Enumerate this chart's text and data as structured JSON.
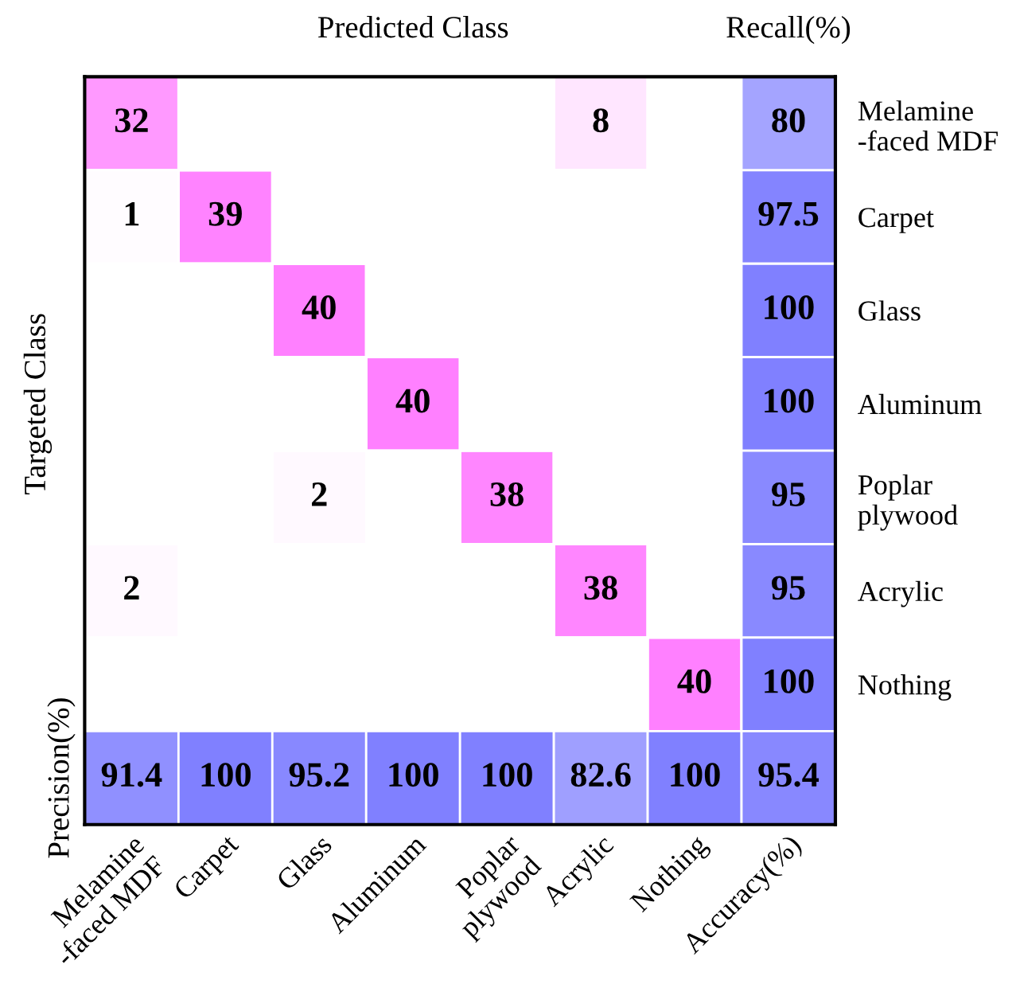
{
  "chart_data": {
    "type": "heatmap",
    "xlabel": "Predicted Class",
    "ylabel": "Targeted Class",
    "annotations": [
      "Recall(%)",
      "Precision(%)"
    ],
    "categories": [
      "Melamine\n-faced MDF",
      "Carpet",
      "Glass",
      "Aluminum",
      "Poplar\nplywood",
      "Acrylic",
      "Nothing",
      "Accuracy(%)"
    ],
    "y_categories": [
      "Melamine\n-faced MDF",
      "Carpet",
      "Glass",
      "Aluminum",
      "Poplar\nplywood",
      "Acrylic",
      "Nothing",
      null
    ],
    "cells": [
      [
        32,
        null,
        null,
        null,
        null,
        8,
        null,
        80
      ],
      [
        1,
        39,
        null,
        null,
        null,
        null,
        null,
        97.5
      ],
      [
        null,
        null,
        40,
        null,
        null,
        null,
        null,
        100
      ],
      [
        null,
        null,
        null,
        40,
        null,
        null,
        null,
        100
      ],
      [
        null,
        null,
        2,
        null,
        38,
        null,
        null,
        95
      ],
      [
        2,
        null,
        null,
        null,
        null,
        38,
        null,
        95
      ],
      [
        null,
        null,
        null,
        null,
        null,
        null,
        40,
        100
      ],
      [
        91.4,
        100,
        95.2,
        100,
        100,
        82.6,
        100,
        95.4
      ]
    ],
    "data_labels": true
  }
}
